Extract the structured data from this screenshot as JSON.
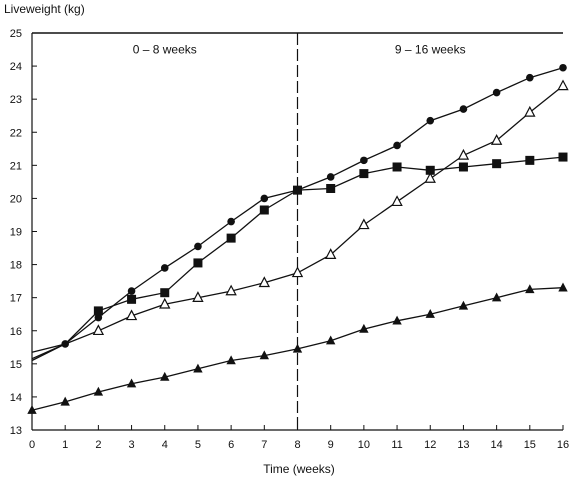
{
  "chart_data": {
    "type": "line",
    "ylabel": "Liveweight (kg)",
    "xlabel": "Time (weeks)",
    "xlim": [
      0,
      16
    ],
    "ylim": [
      13,
      25
    ],
    "x_ticks": [
      0,
      1,
      2,
      3,
      4,
      5,
      6,
      7,
      8,
      9,
      10,
      11,
      12,
      13,
      14,
      15,
      16
    ],
    "y_ticks": [
      13,
      14,
      15,
      16,
      17,
      18,
      19,
      20,
      21,
      22,
      23,
      24,
      25
    ],
    "annotations": [
      {
        "text": "0 – 8 weeks",
        "x": 4,
        "y": 24.5
      },
      {
        "text": "9 – 16 weeks",
        "x": 12,
        "y": 24.5
      }
    ],
    "divider_x": 8,
    "series": [
      {
        "marker": "circle-filled",
        "x": [
          -0.8,
          1,
          2,
          3,
          4,
          5,
          6,
          7,
          8,
          9,
          10,
          11,
          12,
          13,
          14,
          15,
          16
        ],
        "values": [
          14.7,
          15.6,
          16.4,
          17.2,
          17.9,
          18.55,
          19.3,
          20.0,
          20.25,
          20.65,
          21.15,
          21.6,
          22.35,
          22.7,
          23.2,
          23.65,
          23.95
        ]
      },
      {
        "marker": "square-filled",
        "x": [
          -0.8,
          1,
          2,
          3,
          4,
          5,
          6,
          7,
          8,
          9,
          10,
          11,
          12,
          13,
          14,
          15,
          16
        ],
        "values": [
          15.15,
          15.6,
          16.6,
          16.95,
          17.15,
          18.05,
          18.8,
          19.65,
          20.25,
          20.3,
          20.75,
          20.95,
          20.85,
          20.95,
          21.05,
          21.15,
          21.25
        ]
      },
      {
        "marker": "triangle-open",
        "x": [
          -0.8,
          1,
          2,
          3,
          4,
          5,
          6,
          7,
          8,
          9,
          10,
          11,
          12,
          13,
          14,
          15,
          16
        ],
        "values": [
          14.8,
          15.6,
          16.4,
          17.0,
          17.1,
          18.0,
          18.85,
          19.65,
          20.2,
          20.3,
          19.2,
          19.9,
          20.6,
          21.3,
          21.75,
          22.6,
          23.4
        ],
        "segments_override": [
          {
            "x": [
              -0.8,
              1,
              2,
              3,
              4,
              5,
              6,
              7,
              8,
              9,
              10,
              11,
              12,
              13,
              14,
              15,
              16
            ],
            "values": [
              14.8,
              15.6,
              16.0,
              16.45,
              16.8,
              17.0,
              17.2,
              17.45,
              17.75,
              18.3,
              19.2,
              19.9,
              20.6,
              21.3,
              21.75,
              22.6,
              23.4
            ]
          }
        ]
      },
      {
        "marker": "triangle-filled",
        "x": [
          0,
          1,
          2,
          3,
          4,
          5,
          6,
          7,
          8,
          9,
          10,
          11,
          12,
          13,
          14,
          15,
          16
        ],
        "values": [
          13.6,
          13.85,
          14.15,
          14.4,
          14.6,
          14.85,
          15.1,
          15.25,
          15.45,
          15.7,
          16.05,
          16.3,
          16.5,
          16.75,
          17.0,
          17.25,
          17.3
        ]
      }
    ],
    "line_color": "#111111"
  }
}
